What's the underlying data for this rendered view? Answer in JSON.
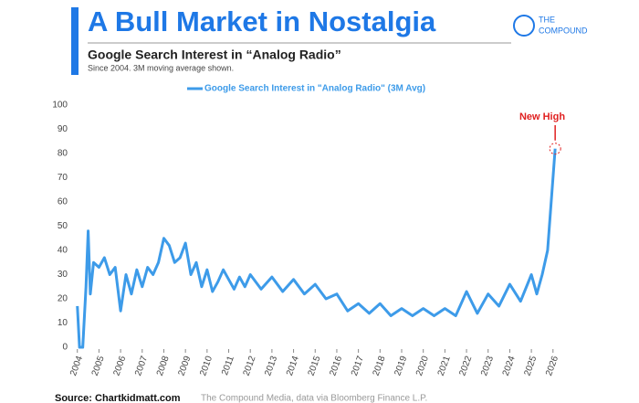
{
  "chart_data": {
    "type": "line",
    "title": "A Bull Market in Nostalgia",
    "brand": [
      "THE",
      "COMPOUND"
    ],
    "subtitle": "Google Search Interest in “Analog Radio”",
    "note": "Since 2004. 3M moving average shown.",
    "annotation": "New High",
    "source_label": "Source: Chartkidmatt.com",
    "source_text": "The Compound Media, data via Bloomberg Finance L.P.",
    "x": [
      2004.0,
      2004.1,
      2004.25,
      2004.4,
      2004.5,
      2004.6,
      2004.75,
      2005.0,
      2005.25,
      2005.5,
      2005.75,
      2006.0,
      2006.25,
      2006.5,
      2006.75,
      2007.0,
      2007.25,
      2007.5,
      2007.75,
      2008.0,
      2008.25,
      2008.5,
      2008.75,
      2009.0,
      2009.25,
      2009.5,
      2009.75,
      2010.0,
      2010.25,
      2010.5,
      2010.75,
      2011.0,
      2011.25,
      2011.5,
      2011.75,
      2012.0,
      2012.5,
      2013.0,
      2013.5,
      2014.0,
      2014.5,
      2015.0,
      2015.5,
      2016.0,
      2016.5,
      2017.0,
      2017.5,
      2018.0,
      2018.5,
      2019.0,
      2019.5,
      2020.0,
      2020.5,
      2021.0,
      2021.5,
      2022.0,
      2022.5,
      2023.0,
      2023.5,
      2024.0,
      2024.5,
      2025.0,
      2025.25,
      2025.5,
      2025.75,
      2026.0,
      2026.1
    ],
    "series": [
      {
        "name": "Google Search Interest in \"Analog Radio\" (3M Avg)",
        "color": "#3d9be9",
        "values": [
          17,
          0,
          0,
          25,
          48,
          22,
          35,
          33,
          37,
          30,
          33,
          15,
          30,
          22,
          32,
          25,
          33,
          30,
          35,
          45,
          42,
          35,
          37,
          43,
          30,
          35,
          25,
          32,
          23,
          27,
          32,
          28,
          24,
          29,
          25,
          30,
          24,
          29,
          23,
          28,
          22,
          26,
          20,
          22,
          15,
          18,
          14,
          18,
          13,
          16,
          13,
          16,
          13,
          16,
          13,
          23,
          14,
          22,
          17,
          26,
          19,
          30,
          22,
          30,
          40,
          70,
          82
        ]
      }
    ],
    "xlim": [
      2003.8,
      2026.6
    ],
    "xticks": [
      2004,
      2005,
      2006,
      2007,
      2008,
      2009,
      2010,
      2011,
      2012,
      2013,
      2014,
      2015,
      2016,
      2017,
      2018,
      2019,
      2020,
      2021,
      2022,
      2023,
      2024,
      2025,
      2026
    ],
    "ylim": [
      0,
      100
    ],
    "yticks": [
      0,
      10,
      20,
      30,
      40,
      50,
      60,
      70,
      80,
      90,
      100
    ]
  }
}
